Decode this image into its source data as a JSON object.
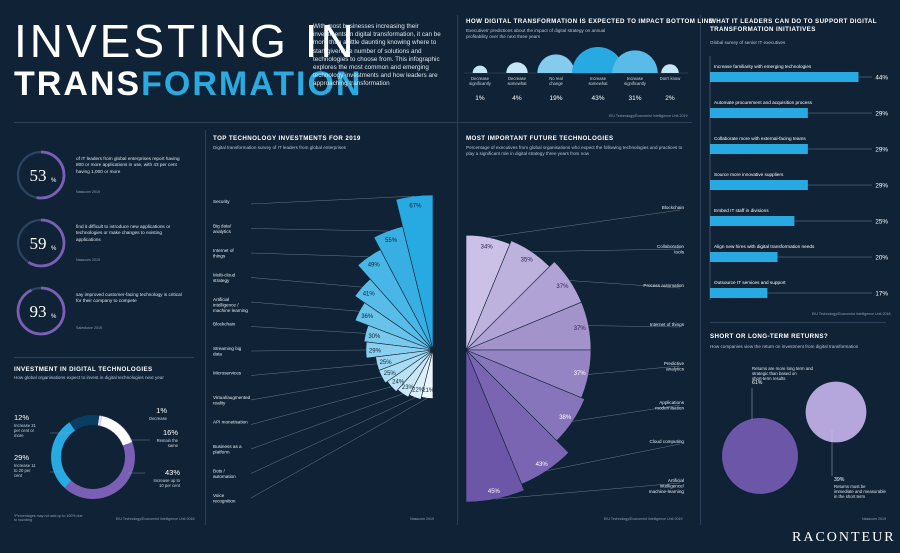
{
  "header": {
    "title_line1": "INVESTING IN",
    "title_line2a": "TRANS",
    "title_line2b": "FORMATION",
    "intro": "With most businesses increasing their investments in digital transformation, it can be more than a little daunting knowing where to start given the number of solutions and technologies to choose from. This infographic explores the most common and emerging technology investments and how leaders are approaching transformation"
  },
  "stats": [
    {
      "value": "53",
      "pct": "%",
      "fraction": 0.53,
      "text": "of IT leaders from global enterprises report having 800 or more applications in use, with 43 per cent having 1,000 or more",
      "source": "Nasscom 2019"
    },
    {
      "value": "59",
      "pct": "%",
      "fraction": 0.59,
      "text": "find it difficult to introduce new applications or technologies or make changes to existing applications",
      "source": "Nasscom 2019"
    },
    {
      "value": "93",
      "pct": "%",
      "fraction": 0.93,
      "text": "say improved customer-facing technology is critical for their company to compete",
      "source": "Salesforce 2019"
    }
  ],
  "colors": {
    "bg": "#0f2236",
    "blue_dark": "#27a9e1",
    "blue_light": "#cfe8f8",
    "purple_dark": "#6b56a8",
    "purple_light": "#cbc1e6",
    "ring": "#7a5fb5"
  },
  "impact": {
    "title": "HOW DIGITAL TRANSFORMATION IS EXPECTED TO IMPACT BOTTOM LINE",
    "subtitle": "Executives' predictions about the impact of digital strategy on annual profitability over the next three years",
    "source": "EIU Technology/Economist Intelligence Unit 2019"
  },
  "investment": {
    "title": "INVESTMENT IN DIGITAL TECHNOLOGIES",
    "subtitle": "How global organisations expect to invest in digital technologies next year",
    "note": "*Percentages may not add up to 100% due to rounding",
    "source": "EIU Technology/Economist Intelligence Unit 2018"
  },
  "top_tech": {
    "title": "TOP TECHNOLOGY INVESTMENTS FOR 2019",
    "subtitle": "Digital transformation survey of IT leaders from global enterprises",
    "source": "Nasscom 2019"
  },
  "future_tech": {
    "title": "MOST IMPORTANT FUTURE TECHNOLOGIES",
    "subtitle": "Percentage of executives from global organisations who expect the following technologies and practices to play a significant role in digital strategy three years from now",
    "source": "EIU Technology/Economist Intelligence Unit 2019"
  },
  "it_leaders": {
    "title": "WHAT IT LEADERS CAN DO TO SUPPORT DIGITAL TRANSFORMATION INITIATIVES",
    "subtitle": "Global survey of senior IT executives",
    "source": "EIU Technology/Economist Intelligence Unit 2018"
  },
  "returns": {
    "title": "SHORT OR LONG-TERM RETURNS?",
    "subtitle": "How companies view the return on investment from digital transformation",
    "source": "Nasscom 2019"
  },
  "logo": "RACONTEUR",
  "chart_data": [
    {
      "id": "impact",
      "type": "bar",
      "categories": [
        "Decrease significantly",
        "Decrease somewhat",
        "No real change",
        "Increase somewhat",
        "Increase significantly",
        "Don't know"
      ],
      "values": [
        1,
        4,
        19,
        43,
        31,
        2
      ],
      "labels": [
        "1%",
        "4%",
        "19%",
        "43%",
        "31%",
        "2%"
      ]
    },
    {
      "id": "investment",
      "type": "pie",
      "categories": [
        "Decrease",
        "Remain the same",
        "Increase up to 10 per cent",
        "Increase 11 to 20 per cent",
        "Increase 21 per cent or more"
      ],
      "values": [
        1,
        16,
        43,
        29,
        12
      ],
      "labels": [
        "1%",
        "16%",
        "43%",
        "29%",
        "12%"
      ],
      "texts": [
        "Decrease",
        "Remain the same",
        "Increase up to 10 per cent",
        "Increase 11 to 20 per cent",
        "Increase 21 per cent or more"
      ]
    },
    {
      "id": "top_tech",
      "type": "bar",
      "categories": [
        "Security",
        "Big data/ analytics",
        "Internet of things",
        "Multi-cloud strategy",
        "Artificial intelligence / machine learning",
        "Blockchain",
        "Streaming big data",
        "Microservices",
        "Virtual/augmented reality",
        "API monetisation",
        "Business as a platform",
        "Bots / automation",
        "Voice recognition"
      ],
      "values": [
        67,
        55,
        49,
        41,
        36,
        30,
        29,
        25,
        25,
        24,
        23,
        22,
        21
      ],
      "labels": [
        "67%",
        "55%",
        "49%",
        "41%",
        "36%",
        "30%",
        "29%",
        "25%",
        "25%",
        "24%",
        "23%",
        "22%",
        "21%"
      ]
    },
    {
      "id": "future_tech",
      "type": "bar",
      "categories": [
        "Blockchain",
        "Collaboration tools",
        "Process automation",
        "Internet of things",
        "Predictive analytics",
        "Applications modernisation",
        "Cloud computing",
        "Artificial intelligence/ machine-learning"
      ],
      "values": [
        34,
        35,
        37,
        37,
        37,
        38,
        43,
        45
      ],
      "labels": [
        "34%",
        "35%",
        "37%",
        "37%",
        "37%",
        "38%",
        "43%",
        "45%"
      ]
    },
    {
      "id": "it_leaders",
      "type": "bar",
      "categories": [
        "Increase familiarity with emerging technologies",
        "Automate procurement and acquisition process",
        "Collaborate more with external-facing teams",
        "Source more innovative suppliers",
        "Embed IT staff in divisions",
        "Align new hires with digital transformation needs",
        "Outsource IT services and support"
      ],
      "values": [
        44,
        29,
        29,
        29,
        25,
        20,
        17
      ],
      "labels": [
        "44%",
        "29%",
        "29%",
        "29%",
        "25%",
        "20%",
        "17%"
      ]
    },
    {
      "id": "returns",
      "type": "bubble",
      "categories": [
        "Returns are more long term and strategic than based on short-term results",
        "Returns must be immediate and measurable in the short term"
      ],
      "values": [
        61,
        39
      ],
      "labels": [
        "61%",
        "39%"
      ]
    }
  ]
}
